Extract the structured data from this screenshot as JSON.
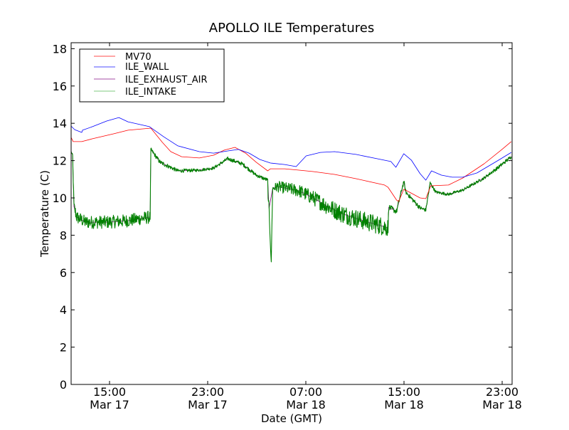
{
  "chart_data": {
    "type": "line",
    "title": "APOLLO ILE Temperatures",
    "xlabel": "Date (GMT)",
    "ylabel": "Temperature (C)",
    "x_units": "hours since Mar 17 00:00 GMT",
    "xlim": [
      11.87,
      47.81
    ],
    "ylim": [
      0,
      18.32
    ],
    "yticks": [
      0,
      2,
      4,
      6,
      8,
      10,
      12,
      14,
      16,
      18
    ],
    "xticks": [
      {
        "x": 15,
        "time": "15:00",
        "date": "Mar 17"
      },
      {
        "x": 23,
        "time": "23:00",
        "date": "Mar 17"
      },
      {
        "x": 31,
        "time": "07:00",
        "date": "Mar 18"
      },
      {
        "x": 39,
        "time": "15:00",
        "date": "Mar 18"
      },
      {
        "x": 47,
        "time": "23:00",
        "date": "Mar 18"
      }
    ],
    "grid": false,
    "legend_position": "top-left",
    "series": [
      {
        "name": "MV70",
        "color": "#ff0000",
        "points": [
          [
            11.87,
            13.24
          ],
          [
            12.04,
            13.02
          ],
          [
            12.74,
            13.02
          ],
          [
            13.61,
            13.17
          ],
          [
            15.35,
            13.44
          ],
          [
            16.51,
            13.63
          ],
          [
            18.37,
            13.74
          ],
          [
            19.3,
            12.98
          ],
          [
            19.99,
            12.48
          ],
          [
            20.87,
            12.21
          ],
          [
            22.32,
            12.14
          ],
          [
            23.48,
            12.29
          ],
          [
            24.35,
            12.56
          ],
          [
            25.22,
            12.71
          ],
          [
            26.09,
            12.4
          ],
          [
            26.96,
            11.91
          ],
          [
            27.89,
            11.45
          ],
          [
            28.12,
            11.56
          ],
          [
            29.28,
            11.56
          ],
          [
            30.44,
            11.49
          ],
          [
            31.6,
            11.41
          ],
          [
            33.34,
            11.26
          ],
          [
            35.09,
            11.03
          ],
          [
            37.41,
            10.69
          ],
          [
            37.7,
            10.57
          ],
          [
            38.39,
            9.89
          ],
          [
            38.57,
            9.81
          ],
          [
            38.98,
            10.46
          ],
          [
            39.44,
            10.31
          ],
          [
            40.31,
            10.0
          ],
          [
            40.78,
            9.96
          ],
          [
            41.18,
            10.65
          ],
          [
            42.63,
            10.69
          ],
          [
            43.79,
            11.07
          ],
          [
            45.53,
            11.83
          ],
          [
            46.98,
            12.6
          ],
          [
            47.74,
            13.02
          ]
        ]
      },
      {
        "name": "ILE_WALL",
        "color": "#0000ff",
        "points": [
          [
            11.87,
            13.85
          ],
          [
            12.16,
            13.66
          ],
          [
            12.74,
            13.51
          ],
          [
            12.8,
            13.63
          ],
          [
            13.61,
            13.82
          ],
          [
            14.77,
            14.12
          ],
          [
            15.76,
            14.31
          ],
          [
            16.51,
            14.08
          ],
          [
            18.25,
            13.82
          ],
          [
            19.41,
            13.28
          ],
          [
            20.57,
            12.79
          ],
          [
            22.32,
            12.48
          ],
          [
            23.48,
            12.4
          ],
          [
            24.64,
            12.52
          ],
          [
            25.51,
            12.6
          ],
          [
            26.38,
            12.4
          ],
          [
            27.25,
            12.06
          ],
          [
            28.12,
            11.87
          ],
          [
            29.28,
            11.79
          ],
          [
            30.21,
            11.68
          ],
          [
            31.02,
            12.25
          ],
          [
            32.18,
            12.44
          ],
          [
            33.34,
            12.48
          ],
          [
            35.09,
            12.33
          ],
          [
            36.83,
            12.1
          ],
          [
            37.93,
            11.95
          ],
          [
            38.34,
            11.64
          ],
          [
            38.98,
            12.37
          ],
          [
            39.61,
            12.02
          ],
          [
            40.31,
            11.3
          ],
          [
            40.78,
            10.95
          ],
          [
            41.24,
            11.45
          ],
          [
            42.05,
            11.22
          ],
          [
            42.92,
            11.11
          ],
          [
            43.79,
            11.11
          ],
          [
            44.95,
            11.34
          ],
          [
            46.69,
            12.02
          ],
          [
            47.74,
            12.44
          ]
        ]
      },
      {
        "name": "ILE_EXHAUST_AIR",
        "color": "#800080",
        "points": [
          [
            11.87,
            12.48
          ],
          [
            11.99,
            12.29
          ],
          [
            12.1,
            9.54
          ],
          [
            12.33,
            8.97
          ],
          [
            13.03,
            8.7
          ],
          [
            14.77,
            8.7
          ],
          [
            16.51,
            8.78
          ],
          [
            18.25,
            8.97
          ],
          [
            18.31,
            8.97
          ],
          [
            18.37,
            12.6
          ],
          [
            19.12,
            11.91
          ],
          [
            20.57,
            11.45
          ],
          [
            22.32,
            11.49
          ],
          [
            23.48,
            11.6
          ],
          [
            24.64,
            12.1
          ],
          [
            25.8,
            11.83
          ],
          [
            26.96,
            11.22
          ],
          [
            27.89,
            10.95
          ],
          [
            28.0,
            9.43
          ],
          [
            28.29,
            10.5
          ],
          [
            28.7,
            10.61
          ],
          [
            30.44,
            10.38
          ],
          [
            31.6,
            10.0
          ],
          [
            32.76,
            9.54
          ],
          [
            33.92,
            9.16
          ],
          [
            35.67,
            8.78
          ],
          [
            37.7,
            8.4
          ],
          [
            37.76,
            9.5
          ],
          [
            38.39,
            9.27
          ],
          [
            38.98,
            10.88
          ],
          [
            39.15,
            10.31
          ],
          [
            40.31,
            9.46
          ],
          [
            40.78,
            9.35
          ],
          [
            41.13,
            10.8
          ],
          [
            41.6,
            10.31
          ],
          [
            42.63,
            10.19
          ],
          [
            43.79,
            10.42
          ],
          [
            45.53,
            11.07
          ],
          [
            46.69,
            11.64
          ],
          [
            47.74,
            12.21
          ]
        ]
      },
      {
        "name": "ILE_INTAKE",
        "color": "#008000",
        "legend_color": "#7fc97f",
        "points": [
          [
            11.87,
            12.48,
            0.05
          ],
          [
            11.99,
            12.29,
            0.05
          ],
          [
            12.1,
            9.54,
            0.3
          ],
          [
            12.33,
            8.97,
            0.35
          ],
          [
            13.03,
            8.7,
            0.35
          ],
          [
            14.77,
            8.7,
            0.35
          ],
          [
            16.51,
            8.78,
            0.35
          ],
          [
            18.25,
            8.97,
            0.35
          ],
          [
            18.31,
            8.97,
            0.3
          ],
          [
            18.37,
            12.6,
            0.1
          ],
          [
            19.12,
            11.91,
            0.12
          ],
          [
            20.57,
            11.45,
            0.1
          ],
          [
            22.32,
            11.49,
            0.08
          ],
          [
            23.48,
            11.6,
            0.08
          ],
          [
            24.64,
            12.1,
            0.1
          ],
          [
            25.8,
            11.83,
            0.1
          ],
          [
            26.96,
            11.22,
            0.1
          ],
          [
            27.89,
            10.95,
            0.1
          ],
          [
            27.95,
            9.5,
            0.4
          ],
          [
            28.0,
            9.43,
            0.4
          ],
          [
            28.18,
            6.49,
            0.1
          ],
          [
            28.29,
            10.5,
            0.2
          ],
          [
            28.7,
            10.61,
            0.3
          ],
          [
            30.44,
            10.38,
            0.35
          ],
          [
            31.6,
            10.0,
            0.4
          ],
          [
            32.76,
            9.54,
            0.45
          ],
          [
            33.92,
            9.16,
            0.5
          ],
          [
            35.67,
            8.78,
            0.5
          ],
          [
            37.7,
            8.4,
            0.5
          ],
          [
            37.76,
            9.5,
            0.15
          ],
          [
            38.39,
            9.27,
            0.15
          ],
          [
            38.98,
            10.88,
            0.12
          ],
          [
            39.15,
            10.31,
            0.12
          ],
          [
            40.31,
            9.46,
            0.12
          ],
          [
            40.78,
            9.35,
            0.1
          ],
          [
            41.13,
            10.8,
            0.1
          ],
          [
            41.6,
            10.31,
            0.08
          ],
          [
            42.63,
            10.19,
            0.08
          ],
          [
            43.79,
            10.42,
            0.08
          ],
          [
            45.53,
            11.07,
            0.08
          ],
          [
            46.69,
            11.64,
            0.1
          ],
          [
            47.74,
            12.21,
            0.1
          ]
        ]
      }
    ]
  }
}
